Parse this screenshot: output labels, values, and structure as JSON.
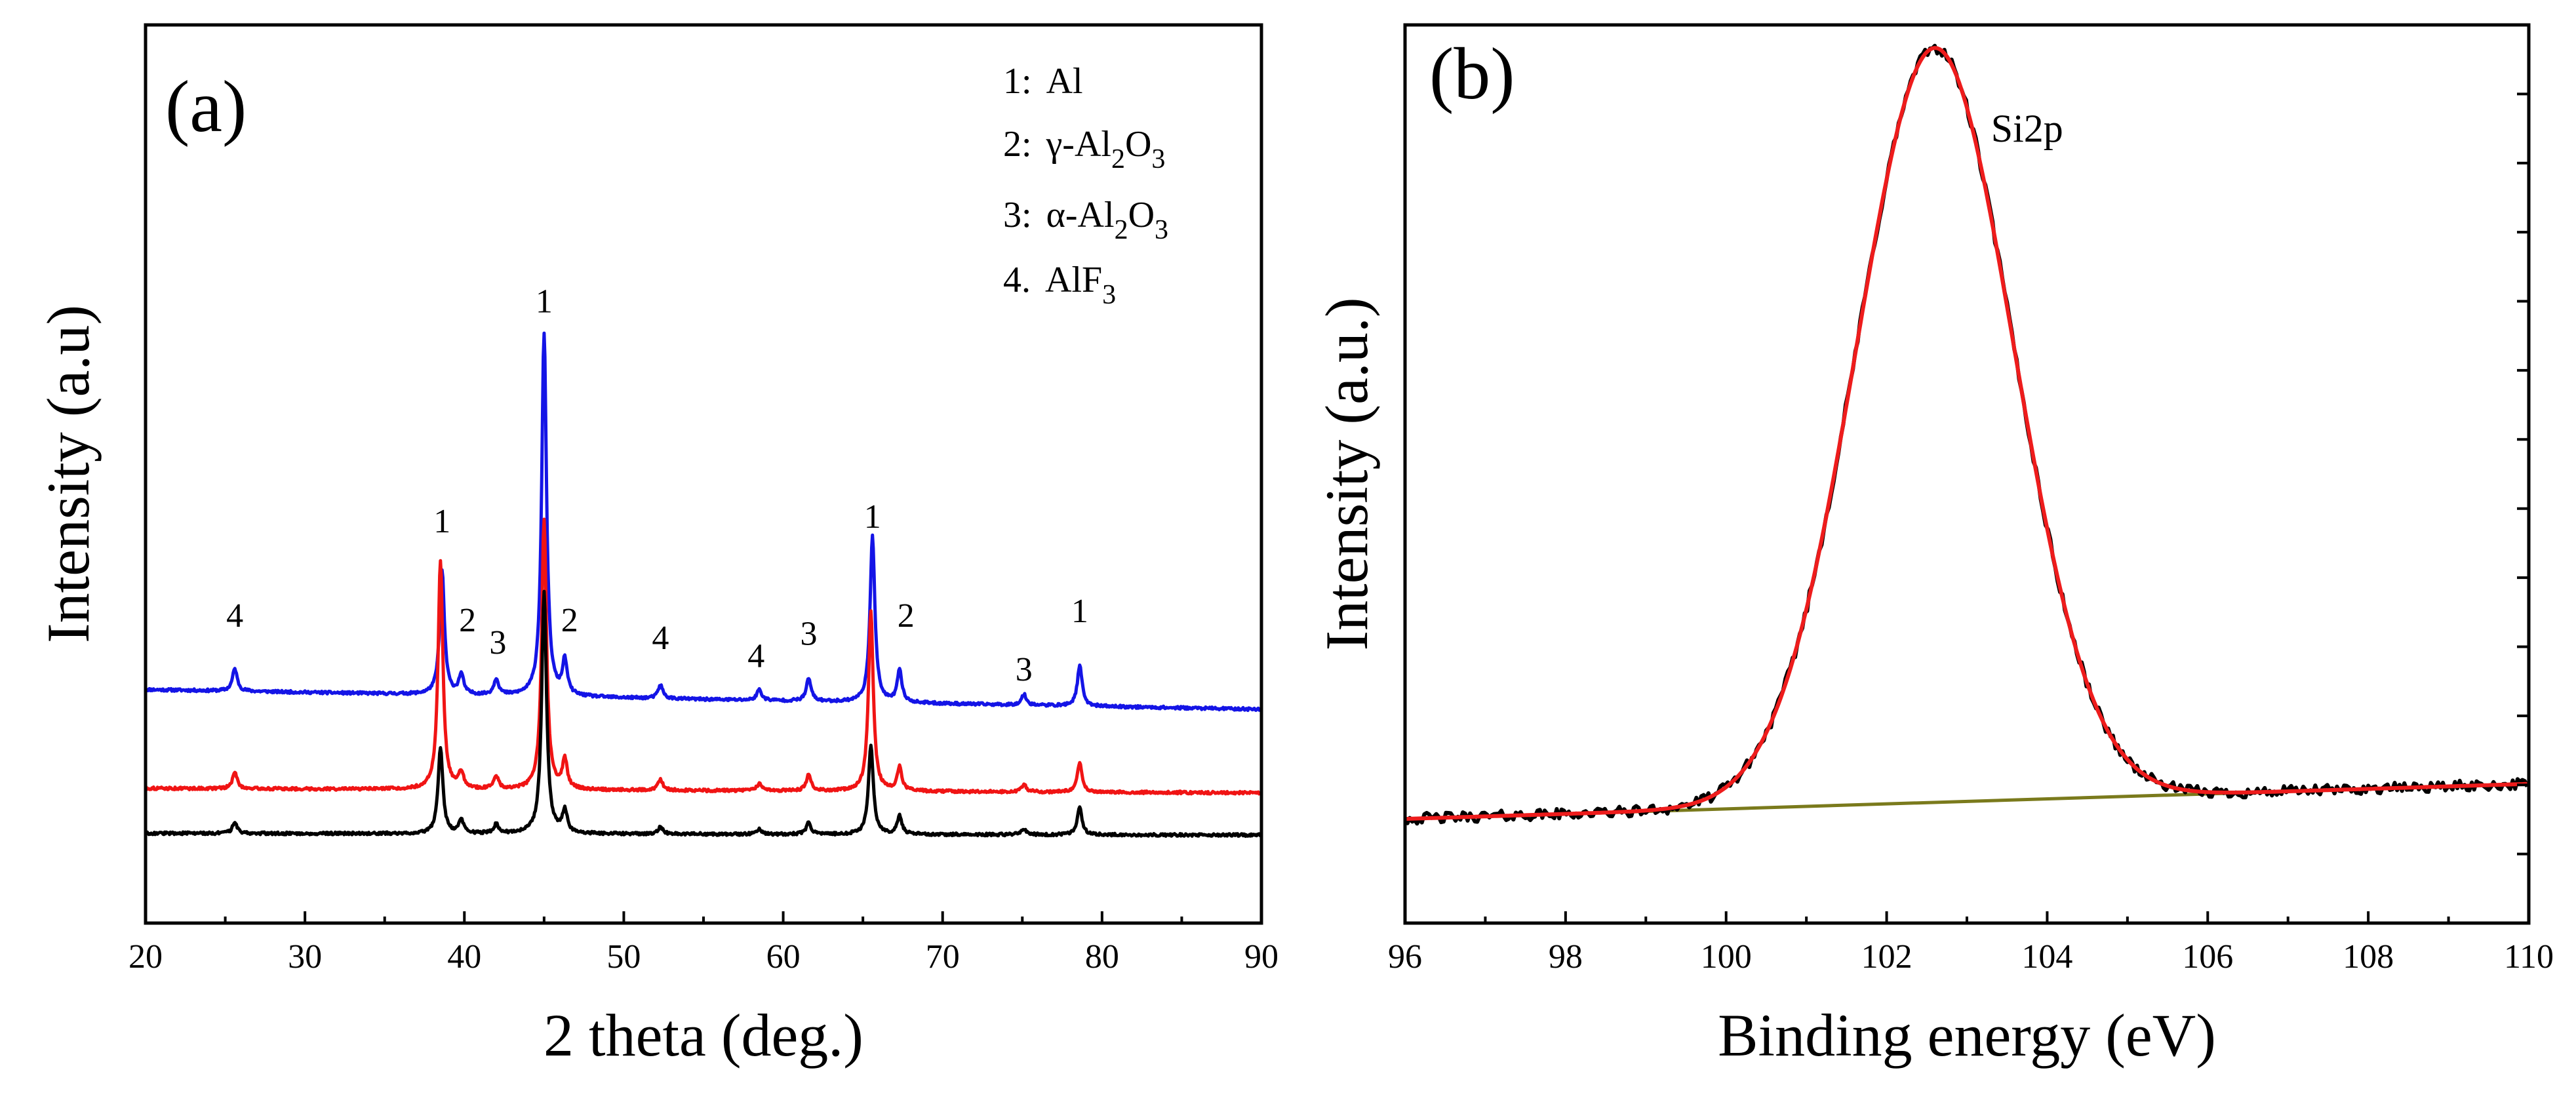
{
  "chart_data": [
    {
      "type": "line",
      "panel_label": "(a)",
      "title": "",
      "xlabel": "2 theta (deg.)",
      "ylabel": "Intensity (a.u)",
      "xlim": [
        20,
        90
      ],
      "ylim": [
        0,
        1
      ],
      "x_ticks": [
        20,
        30,
        40,
        50,
        60,
        70,
        80,
        90
      ],
      "y_ticks_labeled": false,
      "legend": [
        {
          "num": "1:",
          "text": "Al",
          "sub": []
        },
        {
          "num": "2:",
          "text": "γ-Al2O3",
          "parts": [
            "γ-Al",
            "2",
            "O",
            "3"
          ]
        },
        {
          "num": "3:",
          "text": "α-Al2O3",
          "parts": [
            "α-Al",
            "2",
            "O",
            "3"
          ]
        },
        {
          "num": "4.",
          "text": "AlF3",
          "parts": [
            "AlF",
            "3"
          ]
        }
      ],
      "series": [
        {
          "name": "blue trace (top)",
          "color": "#1414e6",
          "baseline": 0.26,
          "slope": -0.022,
          "peaks": [
            [
              25.6,
              0.025
            ],
            [
              38.6,
              0.138
            ],
            [
              39.8,
              0.022
            ],
            [
              42.0,
              0.018
            ],
            [
              45.0,
              0.405
            ],
            [
              46.3,
              0.038
            ],
            [
              52.3,
              0.015
            ],
            [
              58.5,
              0.012
            ],
            [
              61.6,
              0.025
            ],
            [
              65.6,
              0.186
            ],
            [
              67.3,
              0.035
            ],
            [
              75.1,
              0.012
            ],
            [
              78.6,
              0.045
            ]
          ]
        },
        {
          "name": "red trace (middle)",
          "color": "#f01414",
          "baseline": 0.15,
          "slope": -0.005,
          "peaks": [
            [
              25.6,
              0.018
            ],
            [
              38.5,
              0.255
            ],
            [
              39.8,
              0.018
            ],
            [
              42.0,
              0.014
            ],
            [
              45.0,
              0.3
            ],
            [
              46.3,
              0.032
            ],
            [
              52.3,
              0.012
            ],
            [
              58.5,
              0.008
            ],
            [
              61.6,
              0.018
            ],
            [
              65.5,
              0.2
            ],
            [
              67.3,
              0.026
            ],
            [
              75.1,
              0.008
            ],
            [
              78.6,
              0.032
            ]
          ]
        },
        {
          "name": "black trace (bottom)",
          "color": "#000000",
          "baseline": 0.1,
          "slope": -0.002,
          "peaks": [
            [
              25.6,
              0.012
            ],
            [
              38.5,
              0.095
            ],
            [
              39.8,
              0.015
            ],
            [
              42.0,
              0.01
            ],
            [
              45.0,
              0.27
            ],
            [
              46.3,
              0.025
            ],
            [
              52.3,
              0.008
            ],
            [
              58.5,
              0.006
            ],
            [
              61.6,
              0.013
            ],
            [
              65.5,
              0.1
            ],
            [
              67.3,
              0.02
            ],
            [
              75.1,
              0.006
            ],
            [
              78.6,
              0.03
            ]
          ]
        }
      ],
      "peak_labels": [
        {
          "x": 25.6,
          "y": 0.33,
          "text": "4"
        },
        {
          "x": 38.6,
          "y": 0.435,
          "text": "1"
        },
        {
          "x": 40.2,
          "y": 0.325,
          "text": "2"
        },
        {
          "x": 42.1,
          "y": 0.3,
          "text": "3"
        },
        {
          "x": 46.6,
          "y": 0.325,
          "text": "2"
        },
        {
          "x": 45.0,
          "y": 0.68,
          "text": "1"
        },
        {
          "x": 52.3,
          "y": 0.305,
          "text": "4"
        },
        {
          "x": 58.3,
          "y": 0.285,
          "text": "4"
        },
        {
          "x": 61.6,
          "y": 0.31,
          "text": "3"
        },
        {
          "x": 65.6,
          "y": 0.44,
          "text": "1"
        },
        {
          "x": 67.7,
          "y": 0.33,
          "text": "2"
        },
        {
          "x": 75.1,
          "y": 0.27,
          "text": "3"
        },
        {
          "x": 78.6,
          "y": 0.335,
          "text": "1"
        }
      ]
    },
    {
      "type": "line",
      "panel_label": "(b)",
      "title": "",
      "xlabel": "Binding energy (eV)",
      "ylabel": "Intensity (a.u.)",
      "xlim": [
        96,
        110
      ],
      "ylim": [
        0,
        1
      ],
      "x_ticks": [
        96,
        98,
        100,
        102,
        104,
        106,
        108,
        110
      ],
      "y_ticks_labeled": false,
      "annotation": {
        "text": "Si2p",
        "x": 103.3,
        "y": 0.87
      },
      "peak": {
        "center": 102.6,
        "fwhm": 2.3,
        "height": 0.84
      },
      "background": {
        "x": [
          96,
          110
        ],
        "y": [
          0.116,
          0.155
        ]
      },
      "series": [
        {
          "name": "measured",
          "color": "#000000"
        },
        {
          "name": "fit",
          "color": "#ee1c1c"
        },
        {
          "name": "background",
          "color": "#7a7a1c"
        }
      ]
    }
  ]
}
